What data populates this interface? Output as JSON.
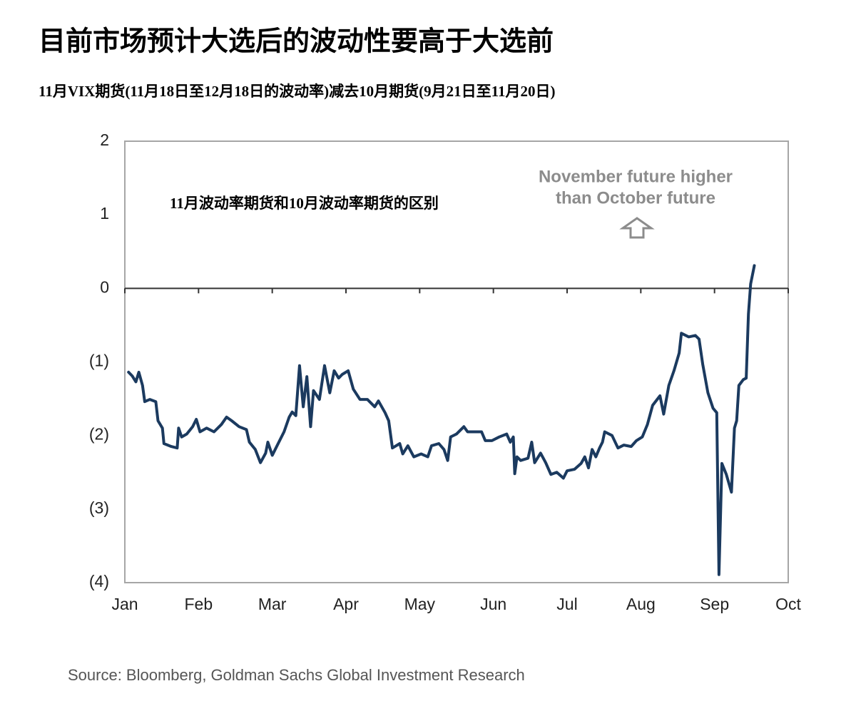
{
  "chart_data": {
    "type": "line",
    "title": "目前市场预计大选后的波动性要高于大选前",
    "subtitle": "11月VIX期货(11月18日至12月18日的波动率)减去10月期货(9月21日至11月20日)",
    "annotations": [
      "11月波动率期货和10月波动率期货的区别",
      "November future higher",
      "than October future"
    ],
    "source": "Source: Bloomberg, Goldman Sachs Global Investment Research",
    "xlim": [
      0,
      9
    ],
    "xticks": [
      {
        "value": 0,
        "label": "Jan"
      },
      {
        "value": 1,
        "label": "Feb"
      },
      {
        "value": 2,
        "label": "Mar"
      },
      {
        "value": 3,
        "label": "Apr"
      },
      {
        "value": 4,
        "label": "May"
      },
      {
        "value": 5,
        "label": "Jun"
      },
      {
        "value": 6,
        "label": "Jul"
      },
      {
        "value": 7,
        "label": "Aug"
      },
      {
        "value": 8,
        "label": "Sep"
      },
      {
        "value": 9,
        "label": "Oct"
      }
    ],
    "ylim": [
      -4,
      2
    ],
    "yticks": [
      2,
      1,
      0,
      {
        "value": -1,
        "label": "(1)"
      },
      {
        "value": -2,
        "label": "(2)"
      },
      {
        "value": -3,
        "label": "(3)"
      },
      {
        "value": -4,
        "label": "(4)"
      }
    ],
    "grid": false,
    "color": "#1b3a5f",
    "x": [
      0.05,
      0.1,
      0.15,
      0.19,
      0.24,
      0.27,
      0.34,
      0.42,
      0.45,
      0.51,
      0.53,
      0.63,
      0.71,
      0.73,
      0.77,
      0.84,
      0.92,
      0.97,
      1.02,
      1.11,
      1.21,
      1.31,
      1.38,
      1.45,
      1.55,
      1.65,
      1.69,
      1.77,
      1.84,
      1.91,
      1.94,
      2.0,
      2.08,
      2.16,
      2.23,
      2.27,
      2.32,
      2.37,
      2.42,
      2.47,
      2.52,
      2.56,
      2.64,
      2.71,
      2.78,
      2.84,
      2.9,
      2.95,
      3.03,
      3.1,
      3.19,
      3.29,
      3.39,
      3.44,
      3.53,
      3.58,
      3.63,
      3.73,
      3.77,
      3.84,
      3.92,
      4.02,
      4.11,
      4.16,
      4.26,
      4.33,
      4.38,
      4.42,
      4.5,
      4.6,
      4.65,
      4.74,
      4.84,
      4.89,
      4.98,
      5.08,
      5.18,
      5.23,
      5.27,
      5.29,
      5.32,
      5.37,
      5.47,
      5.52,
      5.56,
      5.64,
      5.71,
      5.78,
      5.86,
      5.95,
      6.0,
      6.1,
      6.19,
      6.24,
      6.29,
      6.34,
      6.39,
      6.44,
      6.48,
      6.51,
      6.61,
      6.69,
      6.77,
      6.87,
      6.94,
      7.02,
      7.09,
      7.16,
      7.26,
      7.31,
      7.38,
      7.45,
      7.52,
      7.55,
      7.65,
      7.74,
      7.79,
      7.84,
      7.91,
      7.98,
      8.03,
      8.06,
      8.1,
      8.16,
      8.23,
      8.27,
      8.3,
      8.33,
      8.39,
      8.43,
      8.46,
      8.49,
      8.54
    ],
    "values": [
      -1.14,
      -1.19,
      -1.27,
      -1.14,
      -1.32,
      -1.54,
      -1.51,
      -1.54,
      -1.8,
      -1.9,
      -2.11,
      -2.15,
      -2.17,
      -1.9,
      -2.02,
      -1.98,
      -1.88,
      -1.78,
      -1.95,
      -1.9,
      -1.95,
      -1.85,
      -1.75,
      -1.8,
      -1.88,
      -1.92,
      -2.09,
      -2.19,
      -2.37,
      -2.24,
      -2.09,
      -2.27,
      -2.11,
      -1.95,
      -1.75,
      -1.68,
      -1.73,
      -1.05,
      -1.61,
      -1.2,
      -1.88,
      -1.39,
      -1.51,
      -1.05,
      -1.42,
      -1.12,
      -1.22,
      -1.17,
      -1.12,
      -1.37,
      -1.51,
      -1.51,
      -1.61,
      -1.53,
      -1.69,
      -1.8,
      -2.17,
      -2.11,
      -2.25,
      -2.14,
      -2.29,
      -2.25,
      -2.29,
      -2.14,
      -2.11,
      -2.19,
      -2.34,
      -2.02,
      -1.98,
      -1.88,
      -1.95,
      -1.95,
      -1.95,
      -2.07,
      -2.07,
      -2.02,
      -1.98,
      -2.09,
      -2.02,
      -2.52,
      -2.29,
      -2.34,
      -2.31,
      -2.09,
      -2.37,
      -2.24,
      -2.37,
      -2.53,
      -2.5,
      -2.58,
      -2.48,
      -2.46,
      -2.38,
      -2.29,
      -2.44,
      -2.19,
      -2.29,
      -2.17,
      -2.09,
      -1.95,
      -2.0,
      -2.17,
      -2.13,
      -2.15,
      -2.07,
      -2.02,
      -1.85,
      -1.59,
      -1.46,
      -1.71,
      -1.32,
      -1.12,
      -0.88,
      -0.61,
      -0.66,
      -0.64,
      -0.69,
      -1.03,
      -1.42,
      -1.63,
      -1.69,
      -3.89,
      -2.38,
      -2.53,
      -2.77,
      -1.9,
      -1.8,
      -1.32,
      -1.24,
      -1.22,
      -0.35,
      0.06,
      0.31
    ]
  }
}
